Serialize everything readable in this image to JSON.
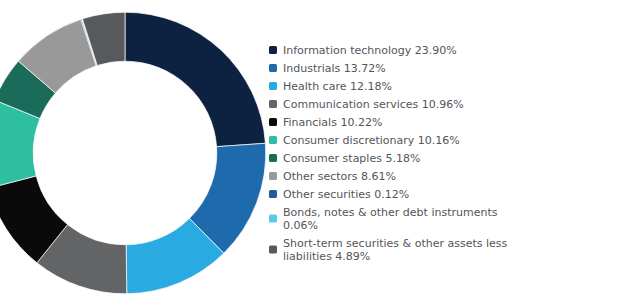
{
  "chart_data": {
    "type": "pie",
    "labels": [
      "Information technology 23.90%",
      "Industrials 13.72%",
      "Health care 12.18%",
      "Communication services 10.96%",
      "Financials 10.22%",
      "Consumer discretionary 10.16%",
      "Consumer staples 5.18%",
      "Other sectors 8.61%",
      "Other securities 0.12%",
      "Bonds, notes & other debt instruments\n0.06%",
      "Short-term securities & other assets less\nliabilities 4.89%"
    ],
    "values": [
      23.9,
      13.72,
      12.18,
      10.96,
      10.22,
      10.16,
      5.18,
      8.61,
      0.12,
      0.06,
      4.89
    ],
    "colors": [
      "#0d2240",
      "#1f6aad",
      "#29abe2",
      "#636466",
      "#0a0a0a",
      "#2dbf9f",
      "#1a6b5a",
      "#999999",
      "#1f5c99",
      "#5bc8e8",
      "#58595b"
    ],
    "legend": "right"
  }
}
